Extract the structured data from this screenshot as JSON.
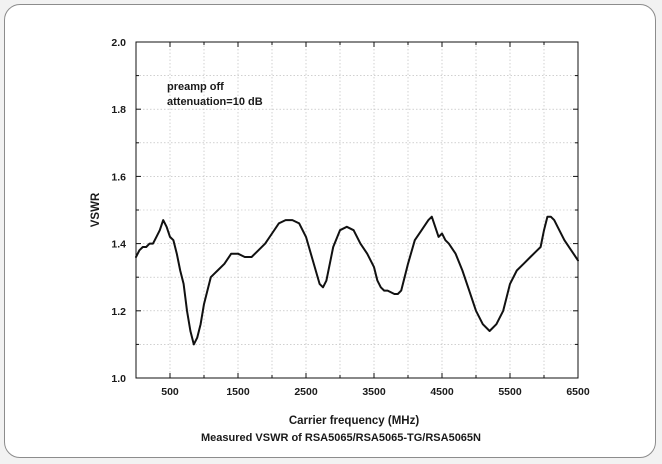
{
  "chart_data": {
    "type": "line",
    "title": "",
    "xlabel": "Carrier frequency (MHz)",
    "ylabel": "VSWR",
    "xlim": [
      0,
      6500
    ],
    "ylim": [
      1.0,
      2.0
    ],
    "grid": true,
    "x_ticks": [
      500,
      1500,
      2500,
      3500,
      4500,
      5500,
      6500
    ],
    "x_tick_labels": [
      "500",
      "1500",
      "2500",
      "3500",
      "4500",
      "5500",
      "6500"
    ],
    "y_ticks": [
      1.0,
      1.2,
      1.4,
      1.6,
      1.8,
      2.0
    ],
    "y_tick_labels": [
      "1.0",
      "1.2",
      "1.4",
      "1.6",
      "1.8",
      "2.0"
    ],
    "annotations": [
      "preamp off",
      "attenuation=10 dB"
    ],
    "caption": "Measured VSWR of RSA5065/RSA5065-TG/RSA5065N",
    "line_color": "#111111",
    "series": [
      {
        "x": [
          0,
          50,
          100,
          150,
          200,
          250,
          300,
          350,
          400,
          450,
          500,
          550,
          600,
          650,
          700,
          750,
          800,
          850,
          900,
          950,
          1000,
          1050,
          1100,
          1150,
          1200,
          1300,
          1400,
          1500,
          1600,
          1700,
          1800,
          1900,
          2000,
          2100,
          2200,
          2300,
          2400,
          2500,
          2600,
          2700,
          2750,
          2800,
          2850,
          2900,
          3000,
          3100,
          3200,
          3300,
          3400,
          3500,
          3550,
          3600,
          3650,
          3700,
          3800,
          3850,
          3900,
          3950,
          4000,
          4100,
          4200,
          4300,
          4350,
          4400,
          4450,
          4500,
          4550,
          4600,
          4700,
          4800,
          4900,
          5000,
          5100,
          5200,
          5300,
          5400,
          5450,
          5500,
          5600,
          5700,
          5800,
          5900,
          5950,
          6000,
          6050,
          6100,
          6150,
          6200,
          6300,
          6400,
          6500
        ],
        "y": [
          1.36,
          1.38,
          1.39,
          1.39,
          1.4,
          1.4,
          1.42,
          1.44,
          1.47,
          1.45,
          1.42,
          1.41,
          1.37,
          1.32,
          1.28,
          1.2,
          1.14,
          1.1,
          1.12,
          1.16,
          1.22,
          1.26,
          1.3,
          1.31,
          1.32,
          1.34,
          1.37,
          1.37,
          1.36,
          1.36,
          1.38,
          1.4,
          1.43,
          1.46,
          1.47,
          1.47,
          1.46,
          1.42,
          1.35,
          1.28,
          1.27,
          1.29,
          1.34,
          1.39,
          1.44,
          1.45,
          1.44,
          1.4,
          1.37,
          1.33,
          1.29,
          1.27,
          1.26,
          1.26,
          1.25,
          1.25,
          1.26,
          1.3,
          1.34,
          1.41,
          1.44,
          1.47,
          1.48,
          1.45,
          1.42,
          1.43,
          1.41,
          1.4,
          1.37,
          1.32,
          1.26,
          1.2,
          1.16,
          1.14,
          1.16,
          1.2,
          1.24,
          1.28,
          1.32,
          1.34,
          1.36,
          1.38,
          1.39,
          1.44,
          1.48,
          1.48,
          1.47,
          1.45,
          1.41,
          1.38,
          1.35
        ]
      }
    ]
  }
}
